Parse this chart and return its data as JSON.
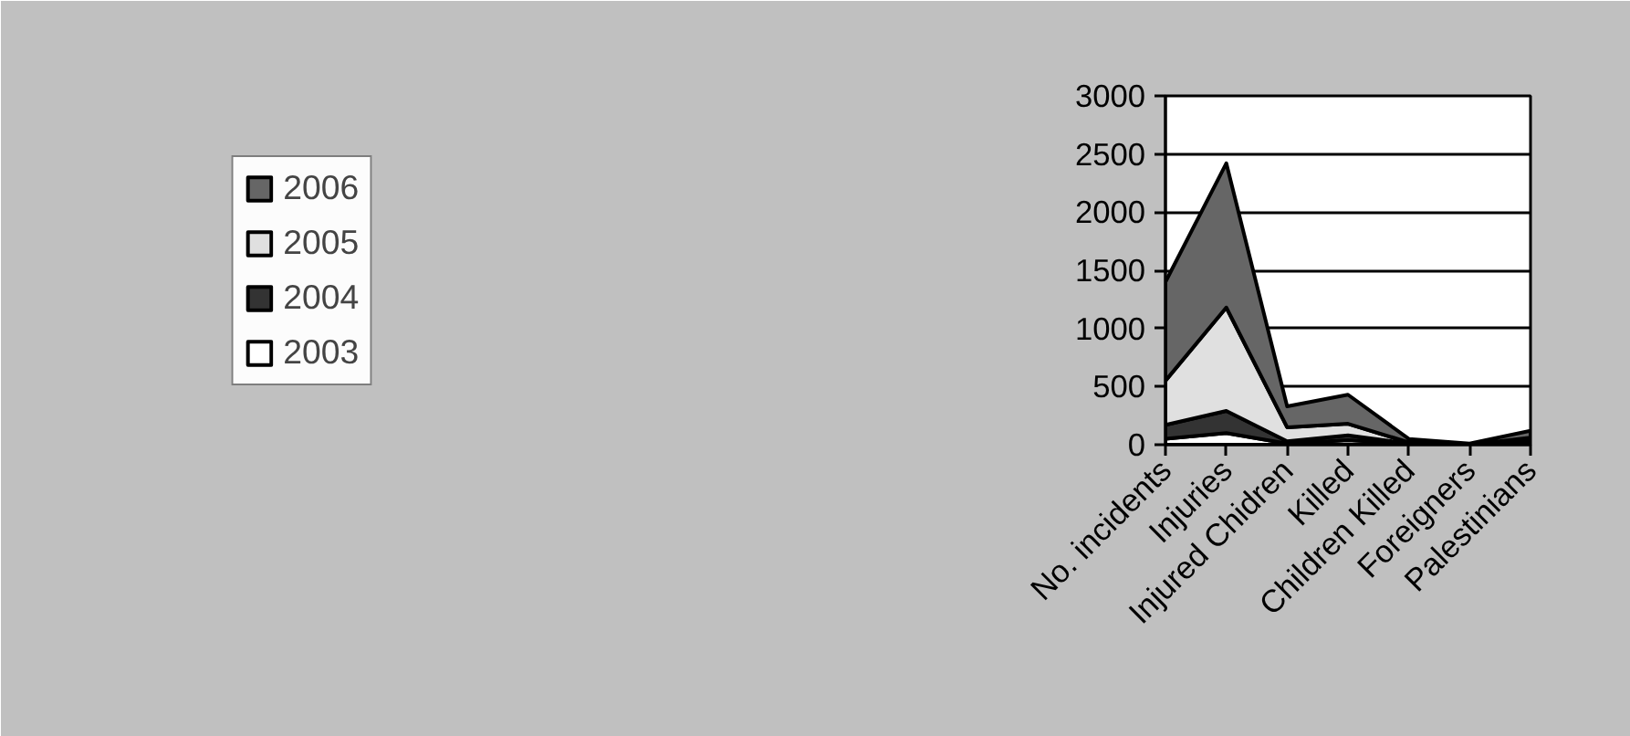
{
  "chart_data": {
    "type": "area",
    "stacked": true,
    "categories": [
      "No. incidents",
      "Injuries",
      "Injured Chidren",
      "Killed",
      "Children Killed",
      "Foreigners",
      "Palestinians"
    ],
    "series": [
      {
        "name": "2003",
        "color": "#ffffff",
        "values": [
          50,
          100,
          10,
          40,
          10,
          0,
          10
        ]
      },
      {
        "name": "2004",
        "color": "#333333",
        "values": [
          120,
          190,
          20,
          40,
          0,
          0,
          20
        ]
      },
      {
        "name": "2005",
        "color": "#e0e0e0",
        "values": [
          380,
          890,
          120,
          100,
          10,
          0,
          30
        ]
      },
      {
        "name": "2006",
        "color": "#666666",
        "values": [
          850,
          1240,
          180,
          250,
          30,
          10,
          60
        ]
      }
    ],
    "ylim": [
      0,
      3000
    ],
    "yticks": [
      0,
      500,
      1000,
      1500,
      2000,
      2500,
      3000
    ],
    "grid": "y",
    "legend": "left"
  }
}
